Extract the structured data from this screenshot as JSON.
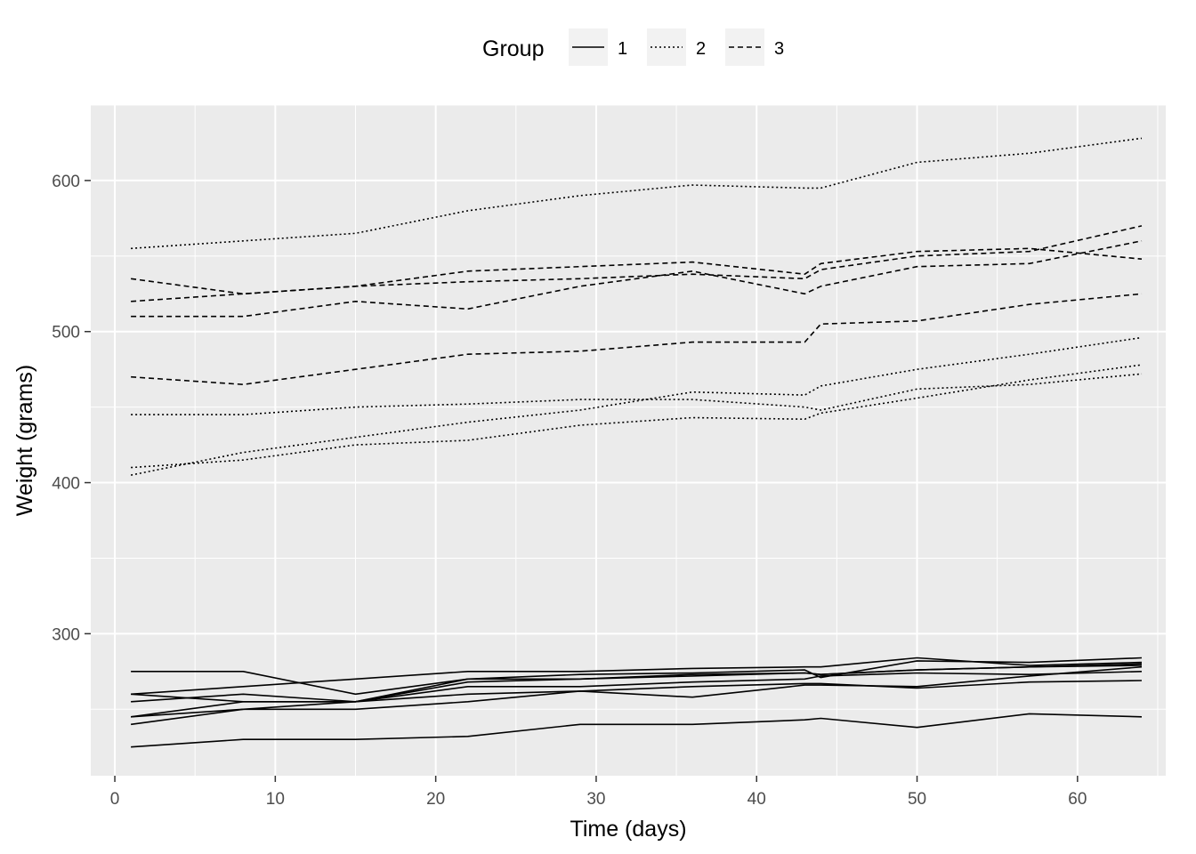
{
  "chart_data": {
    "type": "line",
    "xlabel": "Time (days)",
    "ylabel": "Weight (grams)",
    "xlim": [
      -1.5,
      65.5
    ],
    "ylim": [
      206,
      650
    ],
    "x_ticks": [
      0,
      10,
      20,
      30,
      40,
      50,
      60
    ],
    "y_ticks": [
      300,
      400,
      500,
      600
    ],
    "grid": true,
    "legend": {
      "title": "Group",
      "position": "top",
      "entries": [
        {
          "label": "1",
          "linetype": "solid"
        },
        {
          "label": "2",
          "linetype": "dotted"
        },
        {
          "label": "3",
          "linetype": "dashed"
        }
      ]
    },
    "x": [
      1,
      8,
      15,
      22,
      29,
      36,
      43,
      44,
      50,
      57,
      64
    ],
    "series": [
      {
        "group": "1",
        "values": [
          240,
          250,
          255,
          260,
          262,
          258,
          266,
          266,
          265,
          272,
          278
        ]
      },
      {
        "group": "1",
        "values": [
          225,
          230,
          230,
          232,
          240,
          240,
          243,
          244,
          238,
          247,
          245
        ]
      },
      {
        "group": "1",
        "values": [
          245,
          250,
          250,
          255,
          262,
          265,
          267,
          267,
          264,
          268,
          269
        ]
      },
      {
        "group": "1",
        "values": [
          260,
          255,
          255,
          265,
          265,
          268,
          270,
          272,
          274,
          273,
          275
        ]
      },
      {
        "group": "1",
        "values": [
          255,
          260,
          255,
          270,
          270,
          272,
          274,
          273,
          276,
          278,
          280
        ]
      },
      {
        "group": "1",
        "values": [
          260,
          265,
          270,
          275,
          275,
          277,
          278,
          278,
          284,
          279,
          281
        ]
      },
      {
        "group": "1",
        "values": [
          275,
          275,
          260,
          270,
          273,
          274,
          276,
          271,
          282,
          281,
          284
        ]
      },
      {
        "group": "1",
        "values": [
          245,
          255,
          255,
          268,
          270,
          273,
          274,
          273,
          276,
          278,
          279
        ]
      },
      {
        "group": "2",
        "values": [
          410,
          415,
          425,
          428,
          438,
          443,
          442,
          446,
          456,
          468,
          478
        ]
      },
      {
        "group": "2",
        "values": [
          405,
          420,
          430,
          440,
          448,
          460,
          458,
          464,
          475,
          485,
          496
        ]
      },
      {
        "group": "2",
        "values": [
          445,
          445,
          450,
          452,
          455,
          455,
          450,
          448,
          462,
          465,
          472
        ]
      },
      {
        "group": "2",
        "values": [
          555,
          560,
          565,
          580,
          590,
          597,
          595,
          595,
          612,
          618,
          628
        ]
      },
      {
        "group": "3",
        "values": [
          470,
          465,
          475,
          485,
          487,
          493,
          493,
          505,
          507,
          518,
          525
        ]
      },
      {
        "group": "3",
        "values": [
          535,
          525,
          530,
          540,
          543,
          546,
          538,
          545,
          553,
          555,
          548
        ]
      },
      {
        "group": "3",
        "values": [
          510,
          510,
          520,
          515,
          530,
          540,
          525,
          530,
          543,
          545,
          560
        ]
      },
      {
        "group": "3",
        "values": [
          520,
          525,
          530,
          533,
          535,
          538,
          535,
          541,
          550,
          553,
          570
        ]
      }
    ]
  }
}
